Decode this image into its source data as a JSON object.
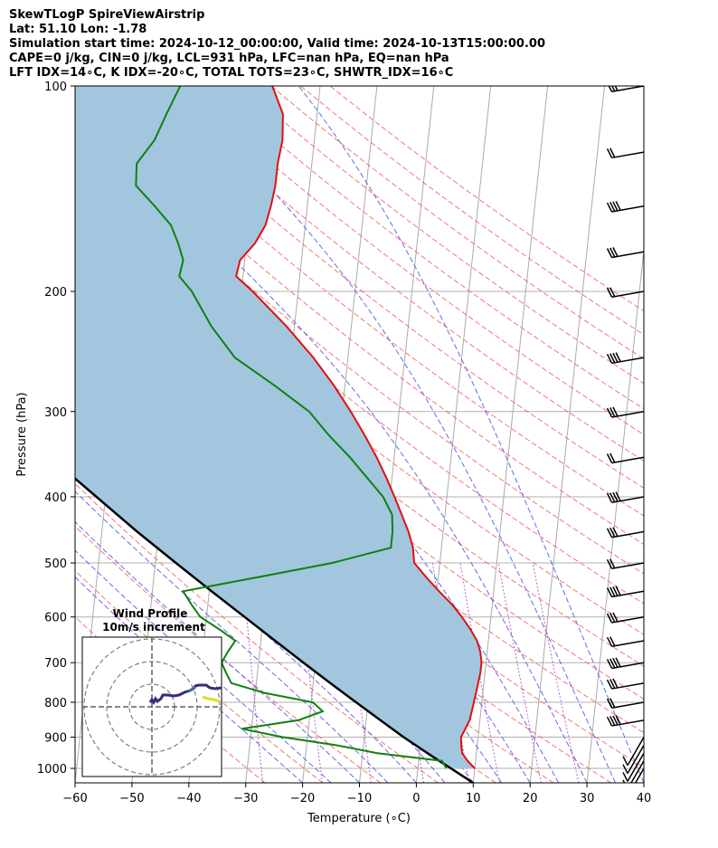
{
  "header": {
    "lines": [
      "SkewTLogP SpireViewAirstrip",
      "Lat: 51.10   Lon: -1.78",
      "Simulation start time: 2024-10-12_00:00:00, Valid time: 2024-10-13T15:00:00.00",
      "CAPE=0 j/kg, CIN=0 j/kg, LCL=931 hPa, LFC=nan hPa, EQ=nan hPa",
      "LFT IDX=14∘C, K IDX=-20∘C, TOTAL TOTS=23∘C, SHWTR_IDX=16∘C"
    ]
  },
  "chart_data": {
    "type": "skewt-logp",
    "xlabel": "Temperature (∘C)",
    "ylabel": "Pressure (hPa)",
    "xlim": [
      -60,
      40
    ],
    "ylim": [
      1050,
      100
    ],
    "x_ticks": [
      -60,
      -50,
      -40,
      -30,
      -20,
      -10,
      0,
      10,
      20,
      30,
      40
    ],
    "x_tick_labels": [
      "−60",
      "−50",
      "−40",
      "−30",
      "−20",
      "−10",
      "0",
      "10",
      "20",
      "30",
      "40"
    ],
    "y_ticks": [
      1000,
      900,
      800,
      700,
      600,
      500,
      400,
      300,
      200,
      100
    ],
    "y_tick_labels": [
      "1000",
      "900",
      "800",
      "700",
      "600",
      "500",
      "400",
      "300",
      "200",
      "100"
    ],
    "grid": true,
    "scale": "log-pressure",
    "colors": {
      "temperature": "#e01010",
      "dewpoint": "#108010",
      "parcel": "#000000",
      "shading": "#a3c6df",
      "dry_adiabat": "#f06060",
      "moist_adiabat": "#5050e0",
      "mixing_ratio": "#a040c0",
      "isotherm": "#aaaaaa"
    },
    "series": [
      {
        "key": "temperature",
        "points": [
          [
            1000,
            10.0
          ],
          [
            975,
            8.6
          ],
          [
            950,
            7.5
          ],
          [
            925,
            7.2
          ],
          [
            900,
            7.0
          ],
          [
            875,
            7.6
          ],
          [
            850,
            8.2
          ],
          [
            825,
            8.4
          ],
          [
            800,
            8.6
          ],
          [
            775,
            8.8
          ],
          [
            750,
            9.0
          ],
          [
            725,
            9.2
          ],
          [
            700,
            9.2
          ],
          [
            675,
            8.8
          ],
          [
            650,
            8.0
          ],
          [
            625,
            6.6
          ],
          [
            600,
            4.9
          ],
          [
            575,
            2.9
          ],
          [
            550,
            0.4
          ],
          [
            525,
            -2.1
          ],
          [
            500,
            -4.5
          ],
          [
            475,
            -5.0
          ],
          [
            450,
            -6.1
          ],
          [
            425,
            -7.6
          ],
          [
            400,
            -9.2
          ],
          [
            375,
            -11.0
          ],
          [
            350,
            -13.1
          ],
          [
            325,
            -15.6
          ],
          [
            300,
            -18.5
          ],
          [
            275,
            -21.9
          ],
          [
            250,
            -26.1
          ],
          [
            225,
            -31.4
          ],
          [
            200,
            -38.0
          ],
          [
            190,
            -41.2
          ],
          [
            180,
            -40.8
          ],
          [
            170,
            -38.5
          ],
          [
            160,
            -37.0
          ],
          [
            150,
            -36.4
          ],
          [
            140,
            -36.0
          ],
          [
            130,
            -36.0
          ],
          [
            120,
            -35.6
          ],
          [
            110,
            -36.0
          ],
          [
            100,
            -38.4
          ]
        ]
      },
      {
        "key": "dewpoint",
        "points": [
          [
            1000,
            5.0
          ],
          [
            975,
            4.1
          ],
          [
            950,
            -7.4
          ],
          [
            925,
            -14.7
          ],
          [
            900,
            -24.3
          ],
          [
            875,
            -31.7
          ],
          [
            850,
            -21.9
          ],
          [
            825,
            -17.8
          ],
          [
            800,
            -19.7
          ],
          [
            775,
            -28.4
          ],
          [
            750,
            -34.4
          ],
          [
            725,
            -35.5
          ],
          [
            700,
            -36.5
          ],
          [
            675,
            -35.6
          ],
          [
            650,
            -34.5
          ],
          [
            625,
            -37.6
          ],
          [
            600,
            -41.1
          ],
          [
            575,
            -42.9
          ],
          [
            550,
            -44.6
          ],
          [
            525,
            -31.9
          ],
          [
            500,
            -18.9
          ],
          [
            475,
            -8.9
          ],
          [
            450,
            -8.9
          ],
          [
            425,
            -9.3
          ],
          [
            400,
            -11.2
          ],
          [
            375,
            -14.4
          ],
          [
            350,
            -17.8
          ],
          [
            325,
            -21.9
          ],
          [
            300,
            -25.8
          ],
          [
            275,
            -32.3
          ],
          [
            250,
            -39.9
          ],
          [
            225,
            -44.6
          ],
          [
            200,
            -48.7
          ],
          [
            190,
            -51.2
          ],
          [
            180,
            -50.8
          ],
          [
            170,
            -52.0
          ],
          [
            160,
            -53.6
          ],
          [
            150,
            -56.8
          ],
          [
            140,
            -60.5
          ],
          [
            130,
            -60.8
          ],
          [
            120,
            -58.1
          ],
          [
            110,
            -56.5
          ],
          [
            100,
            -54.6
          ]
        ]
      },
      {
        "key": "parcel",
        "points": [
          [
            1050,
            10.0
          ],
          [
            1000,
            5.8
          ],
          [
            975,
            3.6
          ],
          [
            950,
            1.4
          ],
          [
            925,
            -0.8
          ],
          [
            900,
            -3.1
          ],
          [
            850,
            -7.5
          ],
          [
            800,
            -12.1
          ],
          [
            750,
            -17.0
          ],
          [
            700,
            -22.1
          ],
          [
            650,
            -27.5
          ],
          [
            600,
            -33.3
          ],
          [
            550,
            -39.6
          ],
          [
            500,
            -46.4
          ],
          [
            450,
            -53.8
          ],
          [
            400,
            -61.6
          ],
          [
            350,
            -70.5
          ],
          [
            300,
            -80.9
          ],
          [
            250,
            -92.6
          ],
          [
            200,
            -107.4
          ],
          [
            150,
            -127.0
          ],
          [
            100,
            -151.6
          ]
        ]
      }
    ],
    "wind_barbs_hpa": [
      1000,
      975,
      950,
      925,
      900,
      850,
      800,
      750,
      700,
      650,
      600,
      550,
      500,
      450,
      400,
      350,
      300,
      250,
      200,
      175,
      150,
      125,
      100
    ],
    "inset": {
      "title": "Wind Profile",
      "subtitle": "10m/s increment"
    }
  }
}
